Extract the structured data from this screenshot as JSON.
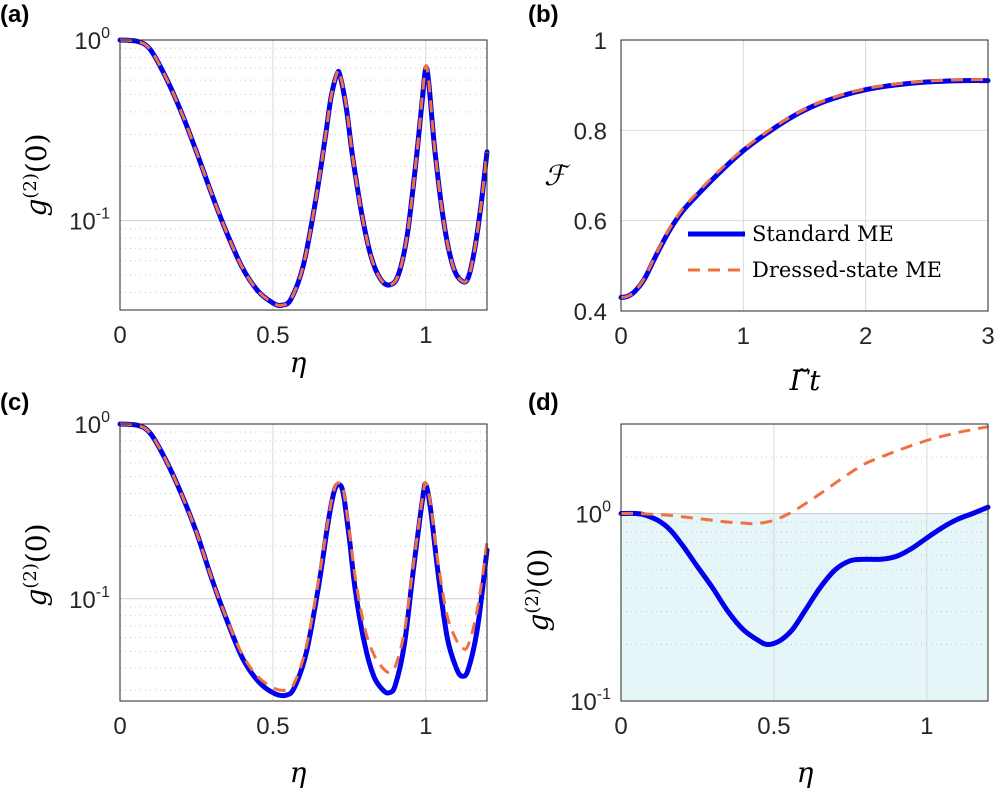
{
  "colors": {
    "standard": "#0000ee",
    "dressed": "#f07040",
    "shade": "#e6f6f8",
    "grid": "#d9d9d9"
  },
  "legend": {
    "standard": "Standard ME",
    "dressed": "Dressed-state ME"
  },
  "chart_data": [
    {
      "id": "a",
      "panel_label": "(a)",
      "type": "line",
      "yscale": "log",
      "xlabel": "η",
      "ylabel": "g(2)(0)",
      "xlim": [
        0,
        1.2
      ],
      "ylim": [
        0.032,
        1.0
      ],
      "xticks": [
        0,
        0.5,
        1
      ],
      "xticklabels": [
        "0",
        "0.5",
        "1"
      ],
      "yticks": [
        {
          "value": 1.0,
          "base": "10",
          "exp": "0"
        },
        {
          "value": 0.1,
          "base": "10",
          "exp": "-1"
        }
      ],
      "series": [
        {
          "name": "Standard ME",
          "style": "solid",
          "x": [
            0,
            0.06,
            0.1,
            0.15,
            0.2,
            0.25,
            0.3,
            0.35,
            0.4,
            0.45,
            0.5,
            0.53,
            0.56,
            0.6,
            0.64,
            0.67,
            0.69,
            0.71,
            0.72,
            0.74,
            0.76,
            0.79,
            0.82,
            0.85,
            0.88,
            0.91,
            0.94,
            0.97,
            0.99,
            1.0,
            1.01,
            1.03,
            1.06,
            1.09,
            1.12,
            1.14,
            1.16,
            1.18,
            1.2
          ],
          "y": [
            1.0,
            0.98,
            0.88,
            0.62,
            0.4,
            0.24,
            0.14,
            0.085,
            0.055,
            0.041,
            0.035,
            0.034,
            0.037,
            0.057,
            0.13,
            0.28,
            0.48,
            0.65,
            0.63,
            0.42,
            0.23,
            0.11,
            0.064,
            0.048,
            0.044,
            0.05,
            0.085,
            0.23,
            0.5,
            0.7,
            0.57,
            0.24,
            0.095,
            0.055,
            0.046,
            0.049,
            0.07,
            0.12,
            0.24
          ]
        },
        {
          "name": "Dressed-state ME",
          "style": "dashed",
          "x": [
            0,
            0.06,
            0.1,
            0.15,
            0.2,
            0.25,
            0.3,
            0.35,
            0.4,
            0.45,
            0.5,
            0.53,
            0.56,
            0.6,
            0.64,
            0.67,
            0.69,
            0.71,
            0.72,
            0.74,
            0.76,
            0.79,
            0.82,
            0.85,
            0.88,
            0.91,
            0.94,
            0.97,
            0.99,
            1.0,
            1.01,
            1.03,
            1.06,
            1.09,
            1.12,
            1.14,
            1.16,
            1.18,
            1.2
          ],
          "y": [
            1.0,
            0.98,
            0.88,
            0.62,
            0.4,
            0.24,
            0.14,
            0.085,
            0.055,
            0.041,
            0.035,
            0.034,
            0.037,
            0.057,
            0.13,
            0.28,
            0.48,
            0.66,
            0.64,
            0.43,
            0.23,
            0.11,
            0.064,
            0.048,
            0.044,
            0.05,
            0.085,
            0.23,
            0.52,
            0.72,
            0.58,
            0.24,
            0.095,
            0.055,
            0.046,
            0.049,
            0.07,
            0.12,
            0.24
          ]
        }
      ]
    },
    {
      "id": "b",
      "panel_label": "(b)",
      "type": "line",
      "yscale": "linear",
      "xlabel": "Γ̃t",
      "ylabel": "𝓕",
      "xlim": [
        0,
        3
      ],
      "ylim": [
        0.4,
        1.0
      ],
      "xticks": [
        0,
        1,
        2,
        3
      ],
      "xticklabels": [
        "0",
        "1",
        "2",
        "3"
      ],
      "yticks": [
        0.4,
        0.6,
        0.8,
        1.0
      ],
      "yticklabels": [
        "0.4",
        "0.6",
        "0.8",
        "1"
      ],
      "series": [
        {
          "name": "Standard ME",
          "style": "solid",
          "x": [
            0,
            0.05,
            0.1,
            0.15,
            0.2,
            0.3,
            0.4,
            0.5,
            0.6,
            0.8,
            1.0,
            1.2,
            1.4,
            1.6,
            1.8,
            2.0,
            2.2,
            2.5,
            2.8,
            3.0
          ],
          "y": [
            0.43,
            0.432,
            0.44,
            0.455,
            0.475,
            0.53,
            0.58,
            0.62,
            0.65,
            0.705,
            0.755,
            0.795,
            0.83,
            0.857,
            0.876,
            0.89,
            0.899,
            0.907,
            0.91,
            0.91
          ]
        },
        {
          "name": "Dressed-state ME",
          "style": "dashed",
          "x": [
            0,
            0.05,
            0.1,
            0.15,
            0.2,
            0.3,
            0.4,
            0.5,
            0.6,
            0.8,
            1.0,
            1.2,
            1.4,
            1.6,
            1.8,
            2.0,
            2.2,
            2.5,
            2.8,
            3.0
          ],
          "y": [
            0.43,
            0.432,
            0.44,
            0.456,
            0.477,
            0.533,
            0.584,
            0.625,
            0.655,
            0.71,
            0.758,
            0.798,
            0.832,
            0.859,
            0.878,
            0.892,
            0.901,
            0.909,
            0.912,
            0.912
          ]
        }
      ]
    },
    {
      "id": "c",
      "panel_label": "(c)",
      "type": "line",
      "yscale": "log",
      "xlabel": "η",
      "ylabel": "g(2)(0)",
      "xlim": [
        0,
        1.2
      ],
      "ylim": [
        0.026,
        1.0
      ],
      "xticks": [
        0,
        0.5,
        1
      ],
      "xticklabels": [
        "0",
        "0.5",
        "1"
      ],
      "yticks": [
        {
          "value": 1.0,
          "base": "10",
          "exp": "0"
        },
        {
          "value": 0.1,
          "base": "10",
          "exp": "-1"
        }
      ],
      "series": [
        {
          "name": "Standard ME",
          "style": "solid",
          "x": [
            0,
            0.06,
            0.1,
            0.15,
            0.2,
            0.25,
            0.3,
            0.35,
            0.4,
            0.45,
            0.5,
            0.54,
            0.57,
            0.61,
            0.65,
            0.68,
            0.7,
            0.715,
            0.73,
            0.75,
            0.77,
            0.8,
            0.83,
            0.86,
            0.88,
            0.9,
            0.93,
            0.96,
            0.99,
            1.0,
            1.015,
            1.04,
            1.07,
            1.1,
            1.12,
            1.14,
            1.17,
            1.2
          ],
          "y": [
            1.0,
            0.98,
            0.88,
            0.62,
            0.4,
            0.24,
            0.13,
            0.075,
            0.046,
            0.034,
            0.029,
            0.028,
            0.031,
            0.05,
            0.12,
            0.27,
            0.41,
            0.45,
            0.4,
            0.22,
            0.11,
            0.055,
            0.036,
            0.03,
            0.029,
            0.032,
            0.055,
            0.15,
            0.38,
            0.45,
            0.33,
            0.14,
            0.06,
            0.04,
            0.036,
            0.04,
            0.07,
            0.19
          ]
        },
        {
          "name": "Dressed-state ME",
          "style": "dashed",
          "x": [
            0,
            0.06,
            0.1,
            0.15,
            0.2,
            0.25,
            0.3,
            0.35,
            0.4,
            0.45,
            0.5,
            0.54,
            0.57,
            0.61,
            0.65,
            0.68,
            0.7,
            0.715,
            0.73,
            0.75,
            0.77,
            0.8,
            0.83,
            0.86,
            0.88,
            0.9,
            0.93,
            0.96,
            0.99,
            1.0,
            1.015,
            1.04,
            1.07,
            1.1,
            1.12,
            1.14,
            1.17,
            1.2
          ],
          "y": [
            1.0,
            0.98,
            0.88,
            0.62,
            0.4,
            0.24,
            0.13,
            0.076,
            0.048,
            0.036,
            0.031,
            0.03,
            0.033,
            0.054,
            0.13,
            0.28,
            0.42,
            0.46,
            0.42,
            0.24,
            0.13,
            0.068,
            0.048,
            0.04,
            0.038,
            0.041,
            0.065,
            0.16,
            0.39,
            0.46,
            0.35,
            0.16,
            0.08,
            0.058,
            0.052,
            0.055,
            0.09,
            0.21
          ]
        }
      ]
    },
    {
      "id": "d",
      "panel_label": "(d)",
      "type": "line",
      "yscale": "log",
      "xlabel": "η",
      "ylabel": "g(2)(0)",
      "xlim": [
        0,
        1.2
      ],
      "ylim": [
        0.1,
        3.0
      ],
      "shaded_region": {
        "y_from": 0.1,
        "y_to": 1.0
      },
      "xticks": [
        0,
        0.5,
        1
      ],
      "xticklabels": [
        "0",
        "0.5",
        "1"
      ],
      "yticks": [
        {
          "value": 1.0,
          "base": "10",
          "exp": "0"
        },
        {
          "value": 0.1,
          "base": "10",
          "exp": "-1"
        }
      ],
      "series": [
        {
          "name": "Standard ME",
          "style": "solid",
          "x": [
            0,
            0.05,
            0.08,
            0.12,
            0.16,
            0.2,
            0.25,
            0.3,
            0.35,
            0.4,
            0.45,
            0.48,
            0.52,
            0.56,
            0.6,
            0.65,
            0.7,
            0.75,
            0.8,
            0.85,
            0.9,
            0.95,
            1.0,
            1.05,
            1.1,
            1.15,
            1.2
          ],
          "y": [
            1.0,
            1.0,
            0.98,
            0.92,
            0.82,
            0.68,
            0.52,
            0.4,
            0.3,
            0.24,
            0.21,
            0.2,
            0.21,
            0.24,
            0.3,
            0.4,
            0.5,
            0.56,
            0.57,
            0.57,
            0.59,
            0.65,
            0.74,
            0.84,
            0.93,
            1.0,
            1.08
          ]
        },
        {
          "name": "Dressed-state ME",
          "style": "dashed",
          "x": [
            0,
            0.05,
            0.1,
            0.15,
            0.2,
            0.25,
            0.3,
            0.35,
            0.4,
            0.43,
            0.45,
            0.5,
            0.55,
            0.6,
            0.65,
            0.7,
            0.75,
            0.8,
            0.85,
            0.9,
            0.95,
            1.0,
            1.05,
            1.1,
            1.15,
            1.2
          ],
          "y": [
            1.0,
            1.0,
            0.99,
            0.98,
            0.96,
            0.94,
            0.92,
            0.9,
            0.89,
            0.88,
            0.885,
            0.92,
            1.0,
            1.12,
            1.27,
            1.45,
            1.65,
            1.85,
            2.0,
            2.15,
            2.3,
            2.45,
            2.58,
            2.7,
            2.8,
            2.9
          ]
        }
      ]
    }
  ]
}
